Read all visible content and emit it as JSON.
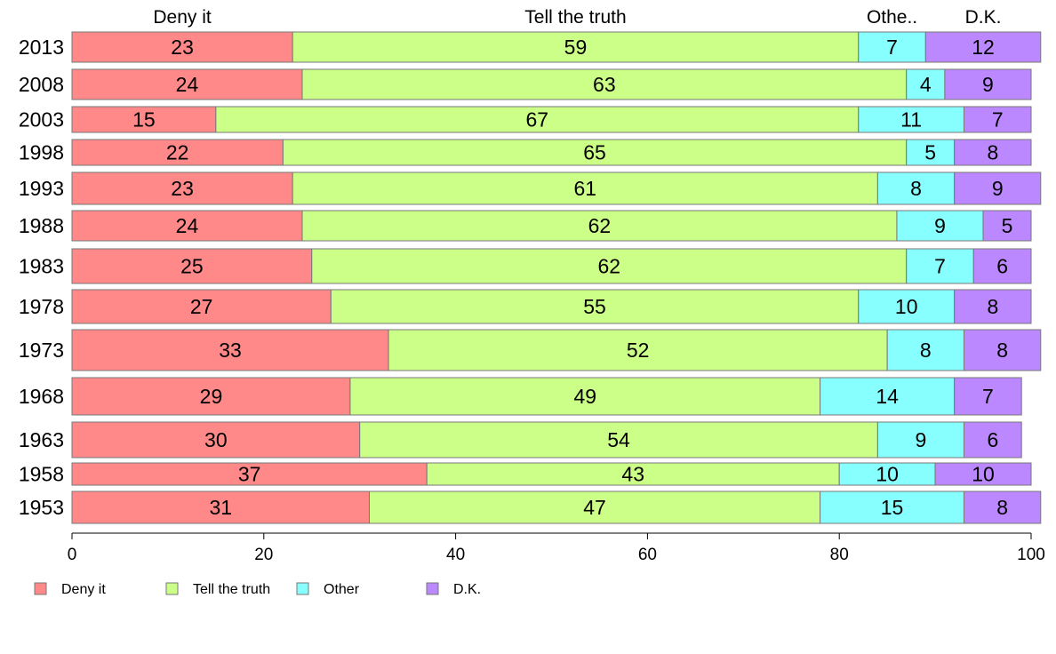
{
  "chart_data": {
    "type": "bar",
    "orientation": "horizontal",
    "stacked": true,
    "title": "",
    "xlabel": "",
    "ylabel": "",
    "xlim": [
      0,
      100
    ],
    "x_ticks": [
      0,
      20,
      40,
      60,
      80,
      100
    ],
    "grid": false,
    "legend_position": "bottom-left",
    "column_headers": [
      "Deny it",
      "Tell the truth",
      "Othe..",
      "D.K."
    ],
    "categories": [
      "2013",
      "2008",
      "2003",
      "1998",
      "1993",
      "1988",
      "1983",
      "1978",
      "1973",
      "1968",
      "1963",
      "1958",
      "1953"
    ],
    "series": [
      {
        "name": "Deny it",
        "color": "#ff8888",
        "values": [
          23,
          24,
          15,
          22,
          23,
          24,
          25,
          27,
          33,
          29,
          30,
          37,
          31
        ]
      },
      {
        "name": "Tell the truth",
        "color": "#ccff88",
        "values": [
          59,
          63,
          67,
          65,
          61,
          62,
          62,
          55,
          52,
          49,
          54,
          43,
          47
        ]
      },
      {
        "name": "Other",
        "color": "#88ffff",
        "values": [
          7,
          4,
          11,
          5,
          8,
          9,
          7,
          10,
          8,
          14,
          9,
          10,
          15
        ]
      },
      {
        "name": "D.K.",
        "color": "#bb88ff",
        "values": [
          12,
          9,
          7,
          8,
          9,
          5,
          6,
          8,
          8,
          7,
          6,
          10,
          8
        ]
      }
    ]
  }
}
